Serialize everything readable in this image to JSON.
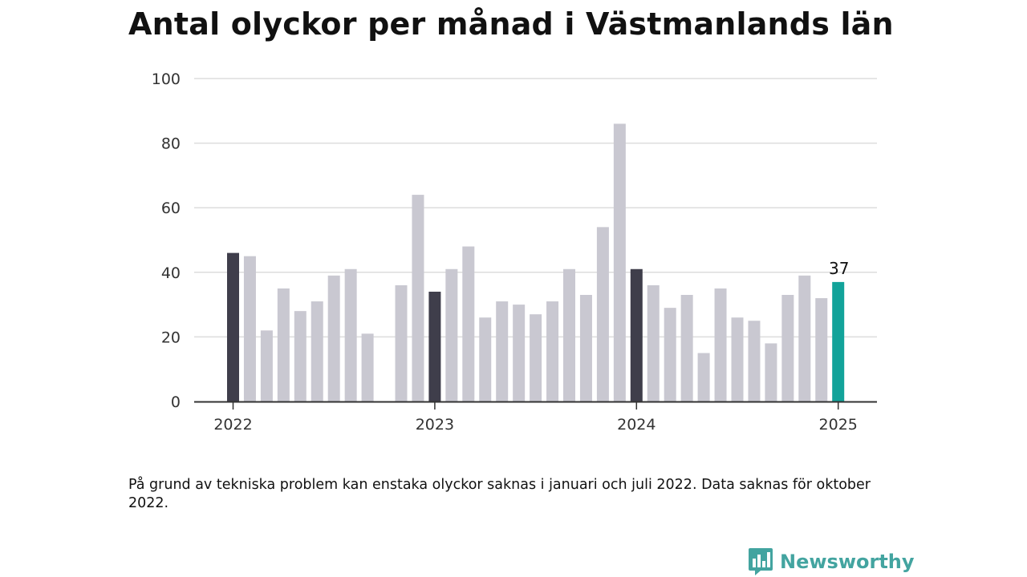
{
  "title": "Antal olyckor per månad i Västmanlands län",
  "footnote": "På grund av tekniska problem kan enstaka olyckor saknas i januari och juli 2022. Data saknas för oktober 2022.",
  "logo": {
    "text": "Newsworthy",
    "icon": "newsworthy-chart-bubble-icon",
    "color": "#43a4a0"
  },
  "colors": {
    "january": "#3f3e4b",
    "other": "#c9c8d1",
    "latest": "#12a39a",
    "grid": "#dddddd",
    "axis": "#333333"
  },
  "chart_data": {
    "type": "bar",
    "title": "Antal olyckor per månad i Västmanlands län",
    "ylim": [
      0,
      100
    ],
    "yticks": [
      0,
      20,
      40,
      60,
      80,
      100
    ],
    "xticks": [
      "2022",
      "2023",
      "2024",
      "2025"
    ],
    "grid": true,
    "categories": [
      "2022-01",
      "2022-02",
      "2022-03",
      "2022-04",
      "2022-05",
      "2022-06",
      "2022-07",
      "2022-08",
      "2022-09",
      "2022-10",
      "2022-11",
      "2022-12",
      "2023-01",
      "2023-02",
      "2023-03",
      "2023-04",
      "2023-05",
      "2023-06",
      "2023-07",
      "2023-08",
      "2023-09",
      "2023-10",
      "2023-11",
      "2023-12",
      "2024-01",
      "2024-02",
      "2024-03",
      "2024-04",
      "2024-05",
      "2024-06",
      "2024-07",
      "2024-08",
      "2024-09",
      "2024-10",
      "2024-11",
      "2024-12",
      "2025-01"
    ],
    "values": [
      46,
      45,
      22,
      35,
      28,
      31,
      39,
      41,
      21,
      null,
      36,
      64,
      34,
      41,
      48,
      26,
      31,
      30,
      27,
      31,
      41,
      33,
      54,
      86,
      41,
      36,
      29,
      33,
      15,
      35,
      26,
      25,
      18,
      33,
      39,
      32,
      37
    ],
    "annotations": [
      {
        "category": "2025-01",
        "label": "37"
      }
    ]
  }
}
